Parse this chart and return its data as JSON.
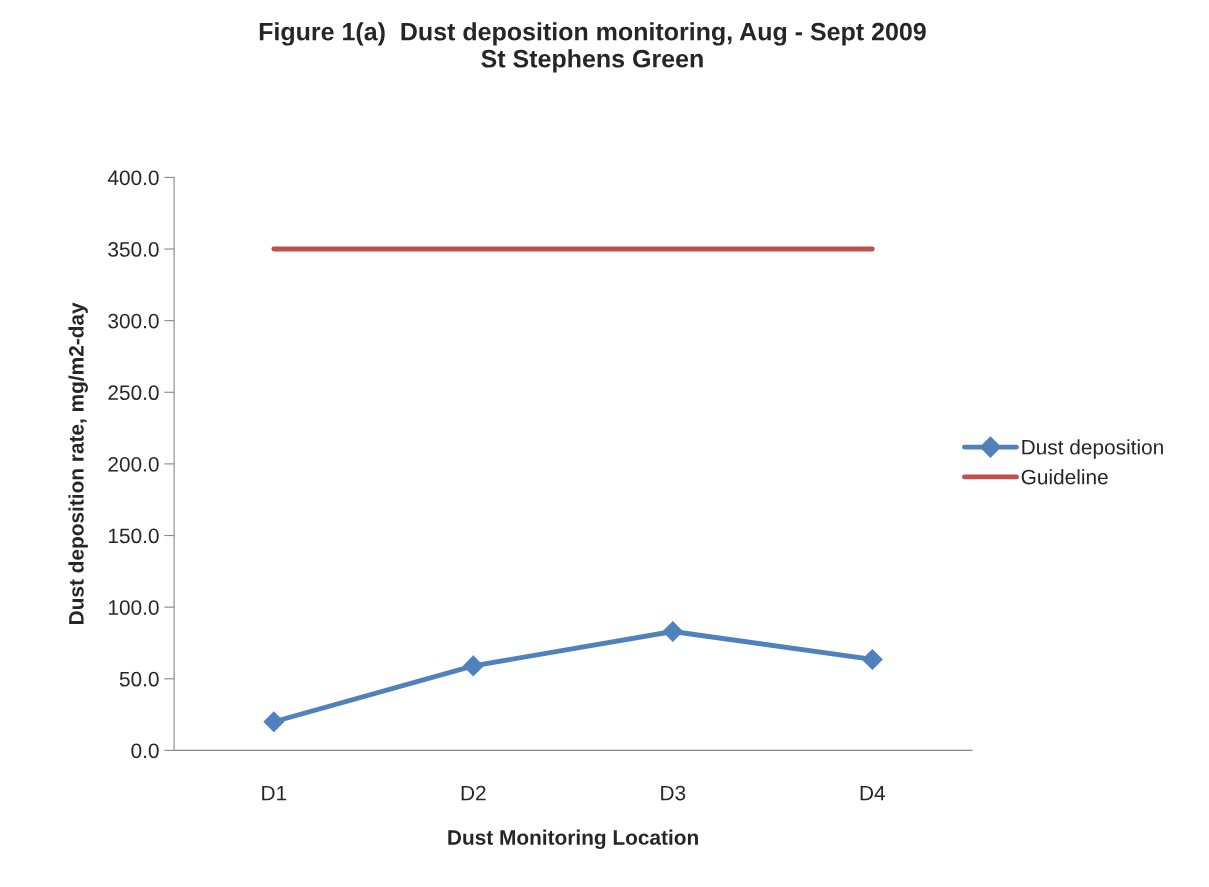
{
  "chart_data": {
    "type": "line",
    "title": "Figure 1(a)  Dust deposition monitoring, Aug - Sept 2009\nSt Stephens Green",
    "xlabel": "Dust Monitoring Location",
    "ylabel": "Dust deposition rate, mg/m2-day",
    "categories": [
      "D1",
      "D2",
      "D3",
      "D4"
    ],
    "series": [
      {
        "name": "Dust deposition",
        "color": "#4f81bd",
        "marker": "diamond",
        "values": [
          20,
          59,
          83,
          63.5
        ]
      },
      {
        "name": "Guideline",
        "color": "#c0504d",
        "marker": "none",
        "values": [
          350,
          350,
          350,
          350
        ]
      }
    ],
    "ylim": [
      0,
      400
    ],
    "yticks": [
      {
        "value": 0,
        "label": "0.0"
      },
      {
        "value": 50,
        "label": "50.0"
      },
      {
        "value": 100,
        "label": "100.0"
      },
      {
        "value": 150,
        "label": "150.0"
      },
      {
        "value": 200,
        "label": "200.0"
      },
      {
        "value": 250,
        "label": "250.0"
      },
      {
        "value": 300,
        "label": "300.0"
      },
      {
        "value": 350,
        "label": "350.0"
      },
      {
        "value": 400,
        "label": "400.0"
      }
    ],
    "grid": false,
    "legend": "right"
  }
}
